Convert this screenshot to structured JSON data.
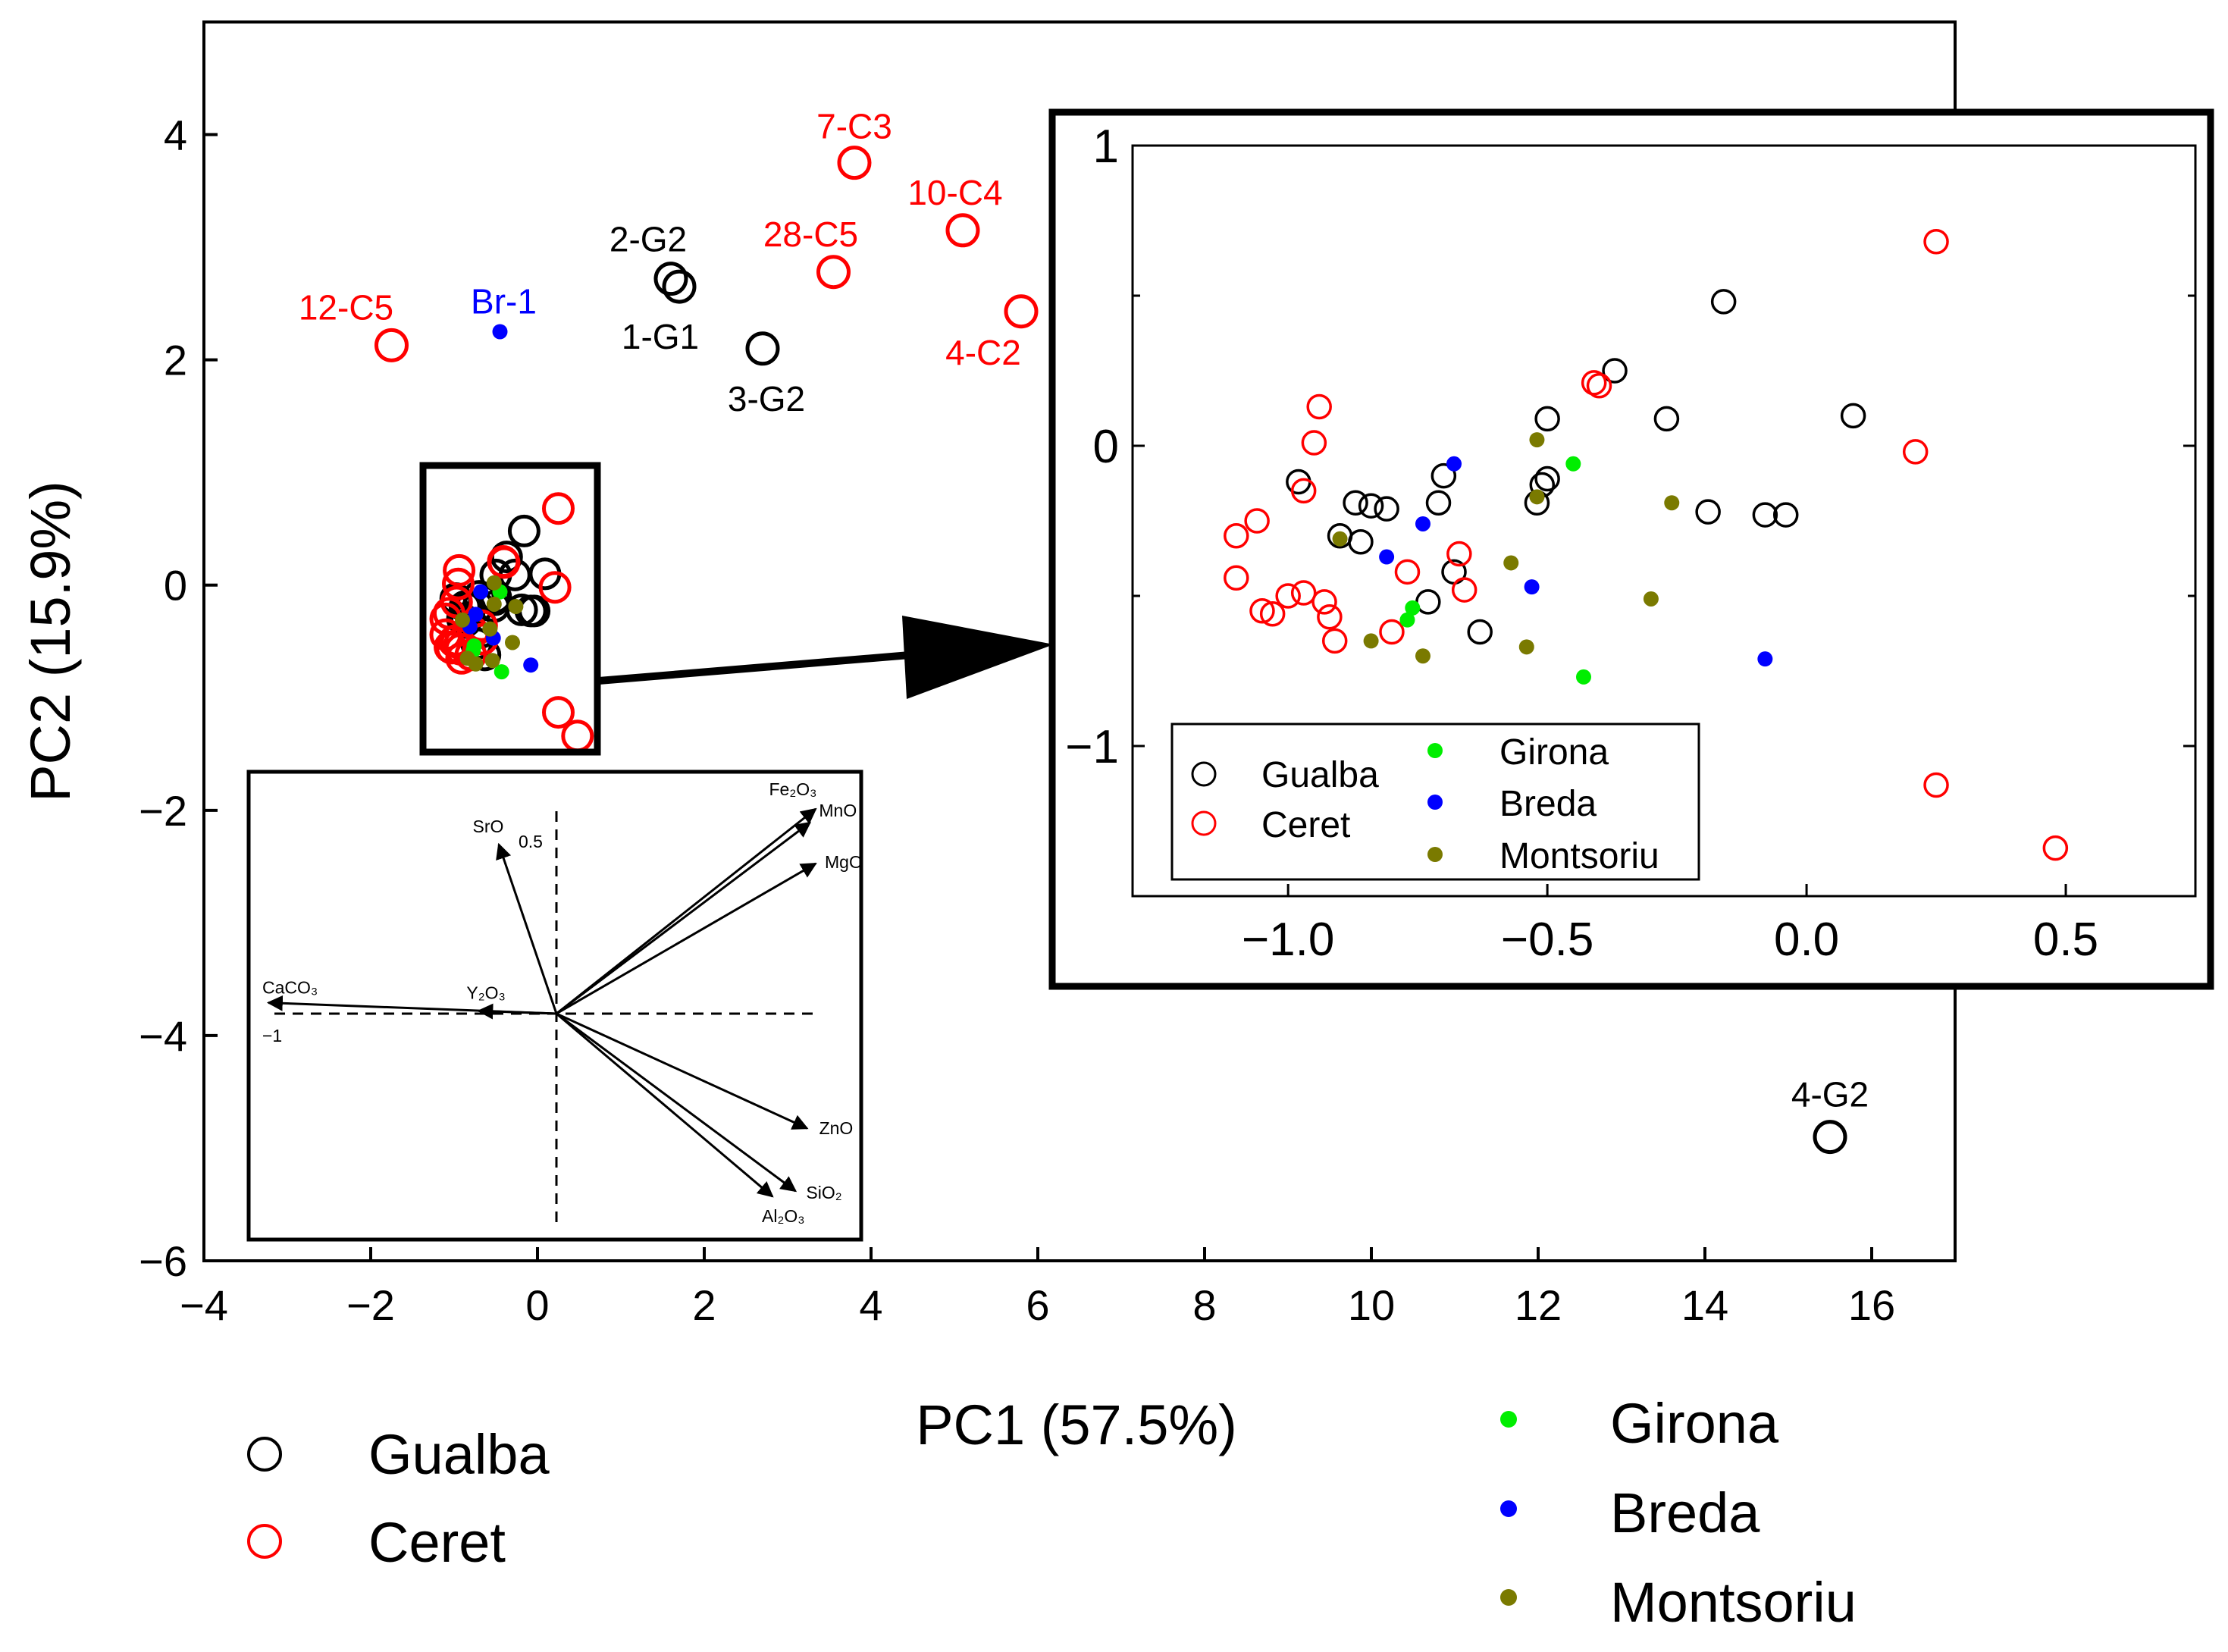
{
  "colors": {
    "Gualba": "#000000",
    "Ceret": "#ff0000",
    "Girona": "#00ee00",
    "Breda": "#0000ff",
    "Montsoriu": "#7a7a00",
    "axis": "#000000",
    "background": "#ffffff"
  },
  "legend": {
    "items": [
      {
        "name": "Gualba",
        "marker": "open-circle"
      },
      {
        "name": "Ceret",
        "marker": "open-circle"
      },
      {
        "name": "Girona",
        "marker": "filled-dot"
      },
      {
        "name": "Breda",
        "marker": "filled-dot"
      },
      {
        "name": "Montsoriu",
        "marker": "filled-dot"
      }
    ]
  },
  "chart_data": [
    {
      "id": "main",
      "type": "scatter",
      "title": "",
      "xlabel": "PC1 (57.5%)",
      "ylabel": "PC2 (15.9%)",
      "xlim": [
        -4,
        17
      ],
      "ylim": [
        -6,
        5
      ],
      "xticks": [
        -4,
        -2,
        0,
        2,
        4,
        6,
        8,
        10,
        12,
        14,
        16
      ],
      "yticks": [
        -6,
        -4,
        -2,
        0,
        2,
        4
      ],
      "xtick_labels": [
        "−4",
        "−2",
        "0",
        "2",
        "4",
        "6",
        "8",
        "10",
        "12",
        "14",
        "16"
      ],
      "ytick_labels": [
        "−6",
        "−4",
        "−2",
        "0",
        "2",
        "4"
      ],
      "labeled_points": [
        {
          "label": "7-C3",
          "group": "Ceret",
          "x": 3.8,
          "y": 3.75
        },
        {
          "label": "10-C4",
          "group": "Ceret",
          "x": 5.1,
          "y": 3.15
        },
        {
          "label": "28-C5",
          "group": "Ceret",
          "x": 3.55,
          "y": 2.78
        },
        {
          "label": "4-C2",
          "group": "Ceret",
          "x": 5.8,
          "y": 2.43
        },
        {
          "label": "12-C5",
          "group": "Ceret",
          "x": -1.75,
          "y": 2.13
        },
        {
          "label": "2-G2",
          "group": "Gualba",
          "x": 1.6,
          "y": 2.72
        },
        {
          "label": "1-G1",
          "group": "Gualba",
          "x": 1.7,
          "y": 2.65
        },
        {
          "label": "3-G2",
          "group": "Gualba",
          "x": 2.7,
          "y": 2.1
        },
        {
          "label": "Br-1",
          "group": "Breda",
          "x": -0.45,
          "y": 2.25
        },
        {
          "label": "4-G2",
          "group": "Gualba",
          "x": 15.5,
          "y": -4.9
        }
      ]
    },
    {
      "id": "zoom-inset",
      "type": "scatter",
      "xlim": [
        -1.3,
        0.75
      ],
      "ylim": [
        -1.5,
        1.0
      ],
      "xticks": [
        -1.0,
        -0.5,
        0.0,
        0.5
      ],
      "yticks": [
        -1,
        0,
        1
      ],
      "xtick_labels": [
        "−1.0",
        "−0.5",
        "0.0",
        "0.5"
      ],
      "ytick_labels": [
        "−1",
        "0",
        "1"
      ],
      "series": [
        {
          "name": "Gualba",
          "points": [
            [
              -0.16,
              0.48
            ],
            [
              -0.37,
              0.25
            ],
            [
              -0.5,
              0.09
            ],
            [
              -0.27,
              0.09
            ],
            [
              0.09,
              0.1
            ],
            [
              -0.98,
              -0.12
            ],
            [
              -0.7,
              -0.1
            ],
            [
              -0.5,
              -0.11
            ],
            [
              -0.51,
              -0.13
            ],
            [
              -0.87,
              -0.19
            ],
            [
              -0.84,
              -0.2
            ],
            [
              -0.81,
              -0.21
            ],
            [
              -0.71,
              -0.19
            ],
            [
              -0.52,
              -0.19
            ],
            [
              -0.19,
              -0.22
            ],
            [
              -0.08,
              -0.23
            ],
            [
              -0.04,
              -0.23
            ],
            [
              -0.9,
              -0.3
            ],
            [
              -0.86,
              -0.32
            ],
            [
              -0.68,
              -0.42
            ],
            [
              -0.73,
              -0.52
            ],
            [
              -0.63,
              -0.62
            ]
          ]
        },
        {
          "name": "Ceret",
          "points": [
            [
              0.25,
              0.68
            ],
            [
              -0.41,
              0.21
            ],
            [
              -0.4,
              0.2
            ],
            [
              -0.94,
              0.13
            ],
            [
              -0.95,
              0.01
            ],
            [
              0.21,
              -0.02
            ],
            [
              -0.97,
              -0.15
            ],
            [
              -1.06,
              -0.25
            ],
            [
              -1.1,
              -0.3
            ],
            [
              -0.67,
              -0.36
            ],
            [
              -0.77,
              -0.42
            ],
            [
              -1.1,
              -0.44
            ],
            [
              -0.66,
              -0.48
            ],
            [
              -1.0,
              -0.5
            ],
            [
              -0.97,
              -0.49
            ],
            [
              -0.93,
              -0.52
            ],
            [
              -1.05,
              -0.55
            ],
            [
              -1.03,
              -0.56
            ],
            [
              -0.92,
              -0.57
            ],
            [
              -0.8,
              -0.62
            ],
            [
              -0.91,
              -0.65
            ],
            [
              0.25,
              -1.13
            ],
            [
              0.48,
              -1.34
            ]
          ]
        },
        {
          "name": "Girona",
          "points": [
            [
              -0.45,
              -0.06
            ],
            [
              -0.76,
              -0.54
            ],
            [
              -0.77,
              -0.58
            ],
            [
              -0.43,
              -0.77
            ]
          ]
        },
        {
          "name": "Breda",
          "points": [
            [
              -0.68,
              -0.06
            ],
            [
              -0.74,
              -0.26
            ],
            [
              -0.81,
              -0.37
            ],
            [
              -0.53,
              -0.47
            ],
            [
              -0.08,
              -0.71
            ]
          ]
        },
        {
          "name": "Montsoriu",
          "points": [
            [
              -0.52,
              0.02
            ],
            [
              -0.52,
              -0.17
            ],
            [
              -0.26,
              -0.19
            ],
            [
              -0.9,
              -0.31
            ],
            [
              -0.57,
              -0.39
            ],
            [
              -0.3,
              -0.51
            ],
            [
              -0.84,
              -0.65
            ],
            [
              -0.54,
              -0.67
            ],
            [
              -0.74,
              -0.7
            ]
          ]
        }
      ]
    },
    {
      "id": "loadings-inset",
      "type": "biplot-loadings",
      "origin_label_x": "−1",
      "origin_label_y": "0.5",
      "vectors": [
        {
          "label": "Fe₂O₃",
          "dx": 0.9,
          "dy": 0.75
        },
        {
          "label": "MnO",
          "dx": 0.88,
          "dy": 0.7
        },
        {
          "label": "MgO",
          "dx": 0.9,
          "dy": 0.55
        },
        {
          "label": "SrO",
          "dx": -0.2,
          "dy": 0.62
        },
        {
          "label": "CaCO₃",
          "dx": -1.0,
          "dy": 0.04
        },
        {
          "label": "Y₂O₃",
          "dx": -0.27,
          "dy": 0.01
        },
        {
          "label": "ZnO",
          "dx": 0.87,
          "dy": -0.42
        },
        {
          "label": "SiO₂",
          "dx": 0.83,
          "dy": -0.65
        },
        {
          "label": "Al₂O₃",
          "dx": 0.75,
          "dy": -0.67
        }
      ]
    }
  ]
}
